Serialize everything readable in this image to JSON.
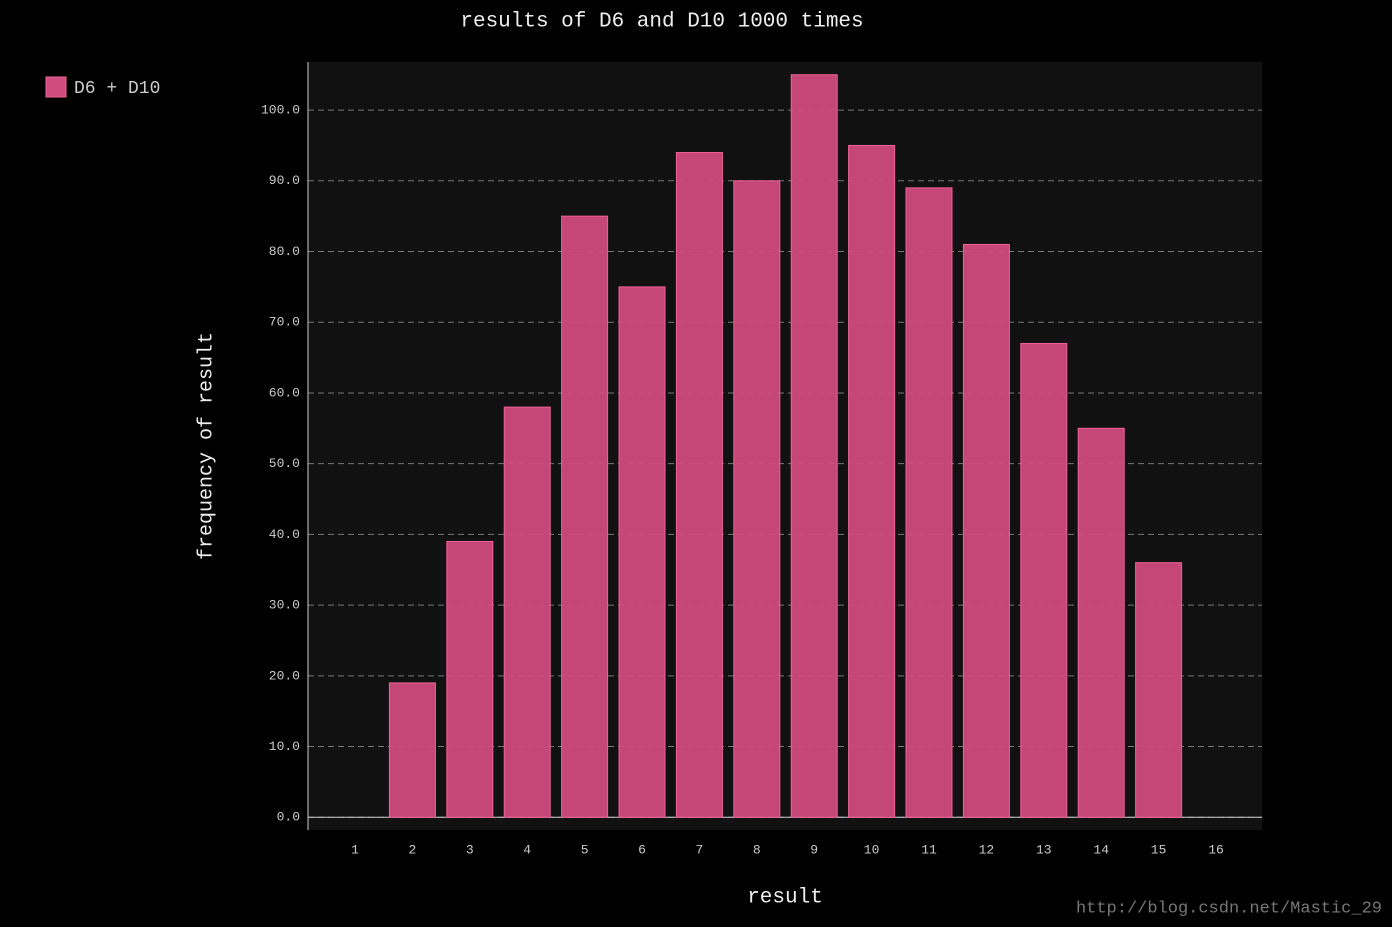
{
  "chart_data": {
    "type": "bar",
    "title": "results of D6 and D10 1000 times",
    "x_label": "result",
    "y_label": "frequency of result",
    "categories": [
      "1",
      "2",
      "3",
      "4",
      "5",
      "6",
      "7",
      "8",
      "9",
      "10",
      "11",
      "12",
      "13",
      "14",
      "15",
      "16"
    ],
    "series": [
      {
        "name": "D6 + D10",
        "color": "#d04b7e",
        "values": [
          0,
          19,
          39,
          58,
          85,
          75,
          94,
          90,
          105,
          95,
          89,
          81,
          67,
          55,
          36,
          0
        ]
      }
    ],
    "ylim": [
      -1.8,
      106.8
    ],
    "yticks": [
      {
        "value": 0,
        "label": "0.0"
      },
      {
        "value": 10,
        "label": "10.0"
      },
      {
        "value": 20,
        "label": "20.0"
      },
      {
        "value": 30,
        "label": "30.0"
      },
      {
        "value": 40,
        "label": "40.0"
      },
      {
        "value": 50,
        "label": "50.0"
      },
      {
        "value": 60,
        "label": "60.0"
      },
      {
        "value": 70,
        "label": "70.0"
      },
      {
        "value": 80,
        "label": "80.0"
      },
      {
        "value": 90,
        "label": "90.0"
      },
      {
        "value": 100,
        "label": "100.0"
      }
    ],
    "grid": true,
    "legend": "top-left",
    "watermark": "http://blog.csdn.net/Mastic_29"
  }
}
